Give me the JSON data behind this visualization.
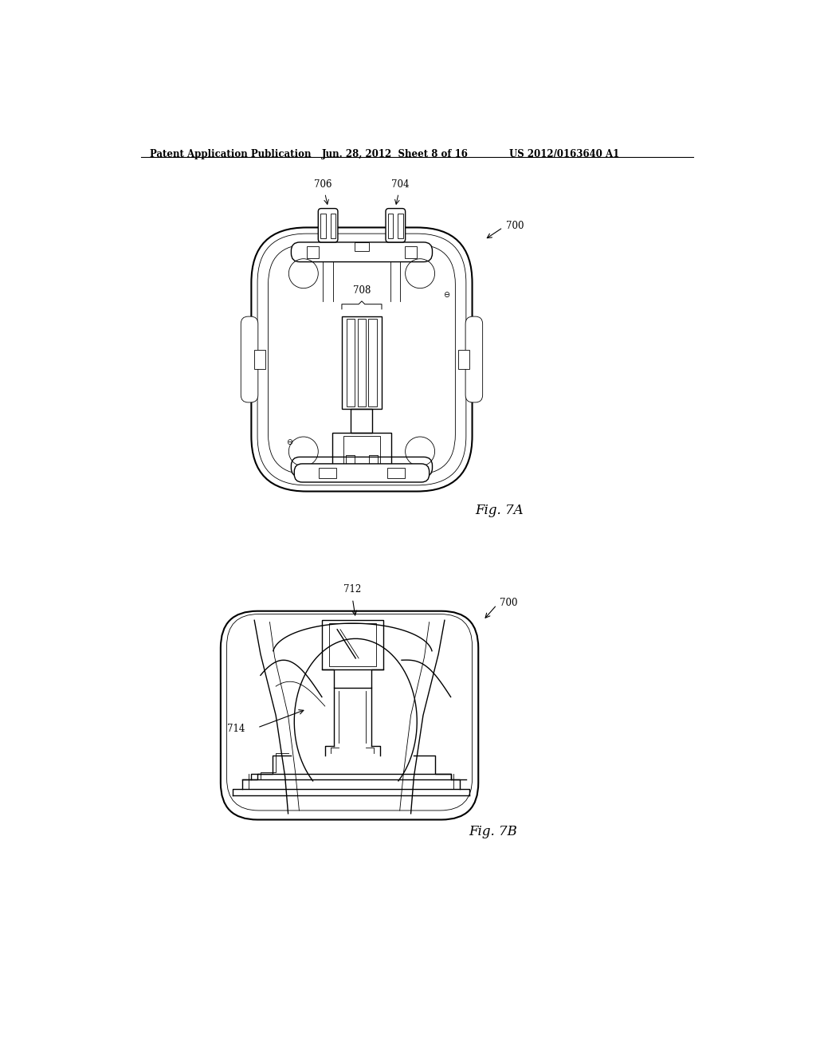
{
  "header_left": "Patent Application Publication",
  "header_mid": "Jun. 28, 2012  Sheet 8 of 16",
  "header_right": "US 2012/0163640 A1",
  "fig_a_label": "Fig. 7A",
  "fig_b_label": "Fig. 7B",
  "line_color": "#000000",
  "bg_color": "#ffffff",
  "lw_thick": 1.5,
  "lw_med": 1.0,
  "lw_thin": 0.6
}
